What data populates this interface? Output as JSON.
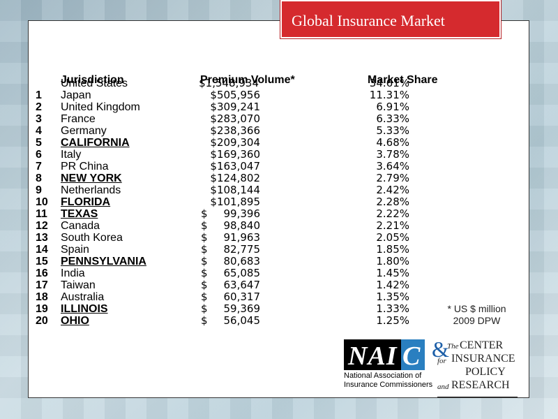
{
  "title": "Global Insurance Market",
  "headers": {
    "jurisdiction": "Jurisdiction",
    "premium": "Premium Volume*",
    "share": "Market Share"
  },
  "us_row": {
    "name": "United States",
    "premium": "$1,548,934",
    "share": "34.61%"
  },
  "rows": [
    {
      "rank": "1",
      "name": "Japan",
      "dollar": "",
      "amount": "$505,956",
      "share": "11.31%",
      "state": false
    },
    {
      "rank": "2",
      "name": "United Kingdom",
      "dollar": "",
      "amount": "$309,241",
      "share": "6.91%",
      "state": false
    },
    {
      "rank": "3",
      "name": "France",
      "dollar": "",
      "amount": "$283,070",
      "share": "6.33%",
      "state": false
    },
    {
      "rank": "4",
      "name": "Germany",
      "dollar": "",
      "amount": "$238,366",
      "share": "5.33%",
      "state": false
    },
    {
      "rank": "5",
      "name": "CALIFORNIA",
      "dollar": "",
      "amount": "$209,304",
      "share": "4.68%",
      "state": true
    },
    {
      "rank": "6",
      "name": "Italy",
      "dollar": "",
      "amount": "$169,360",
      "share": "3.78%",
      "state": false
    },
    {
      "rank": "7",
      "name": "PR China",
      "dollar": "",
      "amount": "$163,047",
      "share": "3.64%",
      "state": false
    },
    {
      "rank": "8",
      "name": "NEW YORK",
      "dollar": "",
      "amount": "$124,802",
      "share": "2.79%",
      "state": true
    },
    {
      "rank": "9",
      "name": "Netherlands",
      "dollar": "",
      "amount": "$108,144",
      "share": "2.42%",
      "state": false
    },
    {
      "rank": "10",
      "name": "FLORIDA",
      "dollar": "",
      "amount": "$101,895",
      "share": "2.28%",
      "state": true
    },
    {
      "rank": "11",
      "name": "TEXAS",
      "dollar": "$",
      "amount": "99,396",
      "share": "2.22%",
      "state": true
    },
    {
      "rank": "12",
      "name": "Canada",
      "dollar": "$",
      "amount": "98,840",
      "share": "2.21%",
      "state": false
    },
    {
      "rank": "13",
      "name": "South Korea",
      "dollar": "$",
      "amount": "91,963",
      "share": "2.05%",
      "state": false
    },
    {
      "rank": "14",
      "name": "Spain",
      "dollar": "$",
      "amount": "82,775",
      "share": "1.85%",
      "state": false
    },
    {
      "rank": "15",
      "name": "PENNSYLVANIA",
      "dollar": "$",
      "amount": "80,683",
      "share": "1.80%",
      "state": true
    },
    {
      "rank": "16",
      "name": "India",
      "dollar": "$",
      "amount": "65,085",
      "share": "1.45%",
      "state": false
    },
    {
      "rank": "17",
      "name": "Taiwan",
      "dollar": "$",
      "amount": "63,647",
      "share": "1.42%",
      "state": false
    },
    {
      "rank": "18",
      "name": "Australia",
      "dollar": "$",
      "amount": "60,317",
      "share": "1.35%",
      "state": false
    },
    {
      "rank": "19",
      "name": "ILLINOIS",
      "dollar": "$",
      "amount": "59,369",
      "share": "1.33%",
      "state": true
    },
    {
      "rank": "20",
      "name": "OHIO",
      "dollar": "$",
      "amount": "56,045",
      "share": "1.25%",
      "state": true
    }
  ],
  "note": {
    "line1": "* US $ million",
    "line2": "2009 DPW"
  },
  "naic": {
    "logo_text": "NAI",
    "logo_c": "C",
    "sub1": "National Association of",
    "sub2": "Insurance Commissioners"
  },
  "cipr": {
    "amp": "&",
    "the": "The",
    "center": "CENTER",
    "for": "for",
    "insurance": "INSURANCE",
    "policy": "POLICY",
    "and": "and",
    "research": "RESEARCH"
  }
}
